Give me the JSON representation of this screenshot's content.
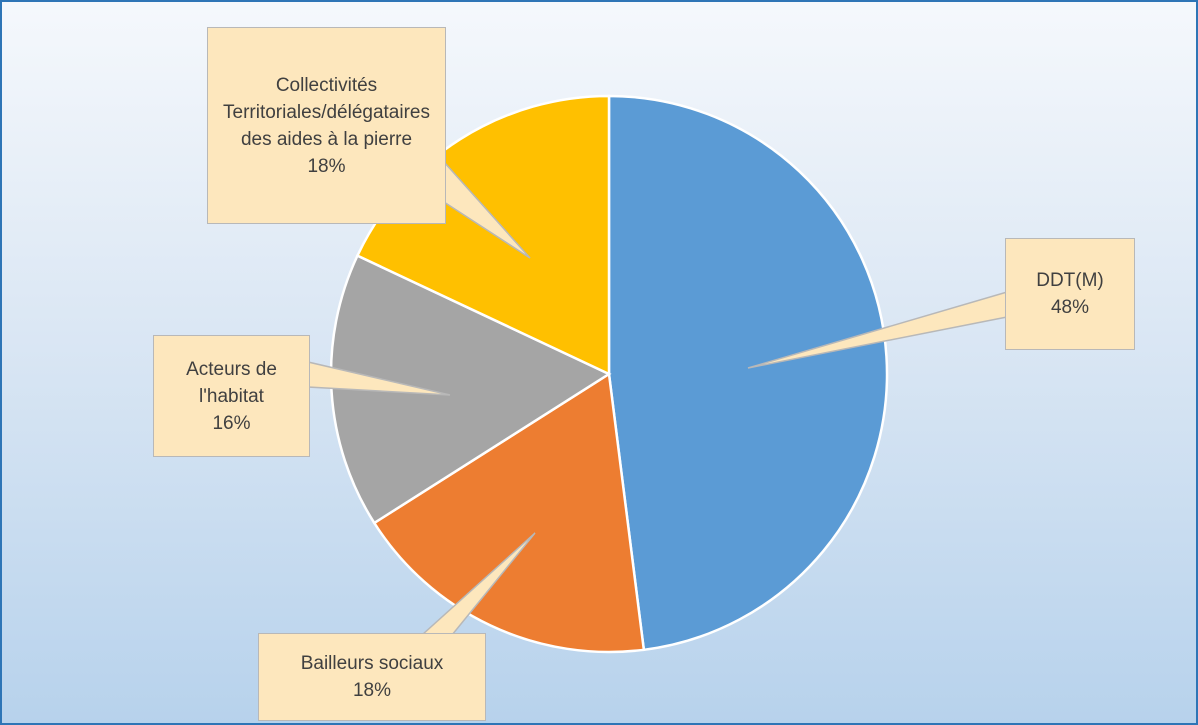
{
  "chart_data": {
    "type": "pie",
    "categories": [
      "DDT(M)",
      "Bailleurs sociaux",
      "Acteurs de l'habitat",
      "Collectivités Territoriales/délégataires des aides à la pierre"
    ],
    "values": [
      48,
      18,
      16,
      18
    ],
    "value_labels": [
      "48%",
      "18%",
      "16%",
      "18%"
    ],
    "colors": [
      "#5b9bd5",
      "#ed7d31",
      "#a5a5a5",
      "#ffc000"
    ]
  }
}
